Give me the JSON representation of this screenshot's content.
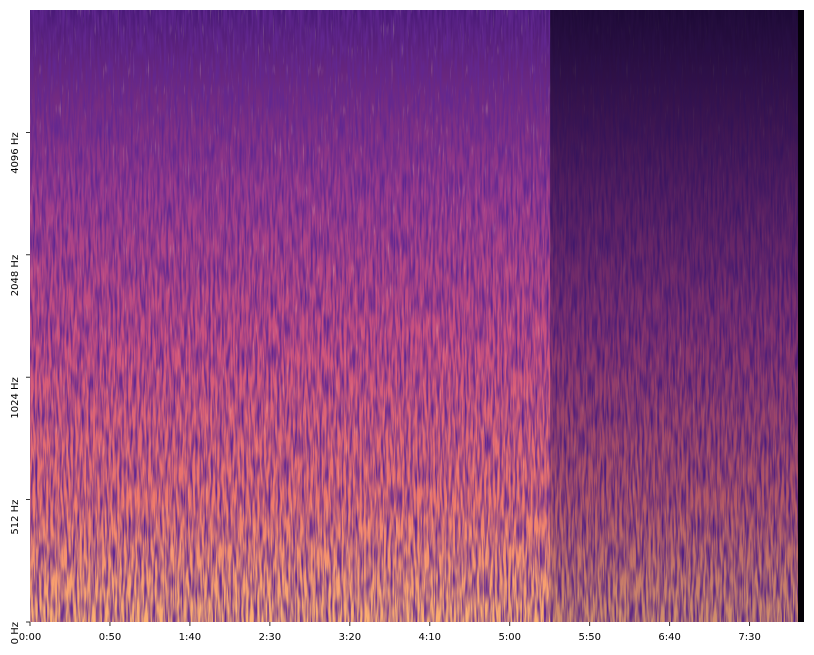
{
  "chart_data": {
    "type": "spectrogram",
    "xlim": [
      0,
      484
    ],
    "xticks": [
      {
        "value": 0,
        "label": "0:00"
      },
      {
        "value": 50,
        "label": "0:50"
      },
      {
        "value": 100,
        "label": "1:40"
      },
      {
        "value": 150,
        "label": "2:30"
      },
      {
        "value": 200,
        "label": "3:20"
      },
      {
        "value": 250,
        "label": "4:10"
      },
      {
        "value": 300,
        "label": "5:00"
      },
      {
        "value": 350,
        "label": "5:50"
      },
      {
        "value": 400,
        "label": "6:40"
      },
      {
        "value": 450,
        "label": "7:30"
      }
    ],
    "ylim": [
      0,
      8192
    ],
    "yscale": "symlog",
    "linthresh": 512,
    "yticks": [
      {
        "value": 0,
        "label": "0 Hz"
      },
      {
        "value": 512,
        "label": "512 Hz"
      },
      {
        "value": 1024,
        "label": "1024 Hz"
      },
      {
        "value": 2048,
        "label": "2048 Hz"
      },
      {
        "value": 4096,
        "label": "4096 Hz"
      }
    ],
    "colormap": "magma"
  }
}
